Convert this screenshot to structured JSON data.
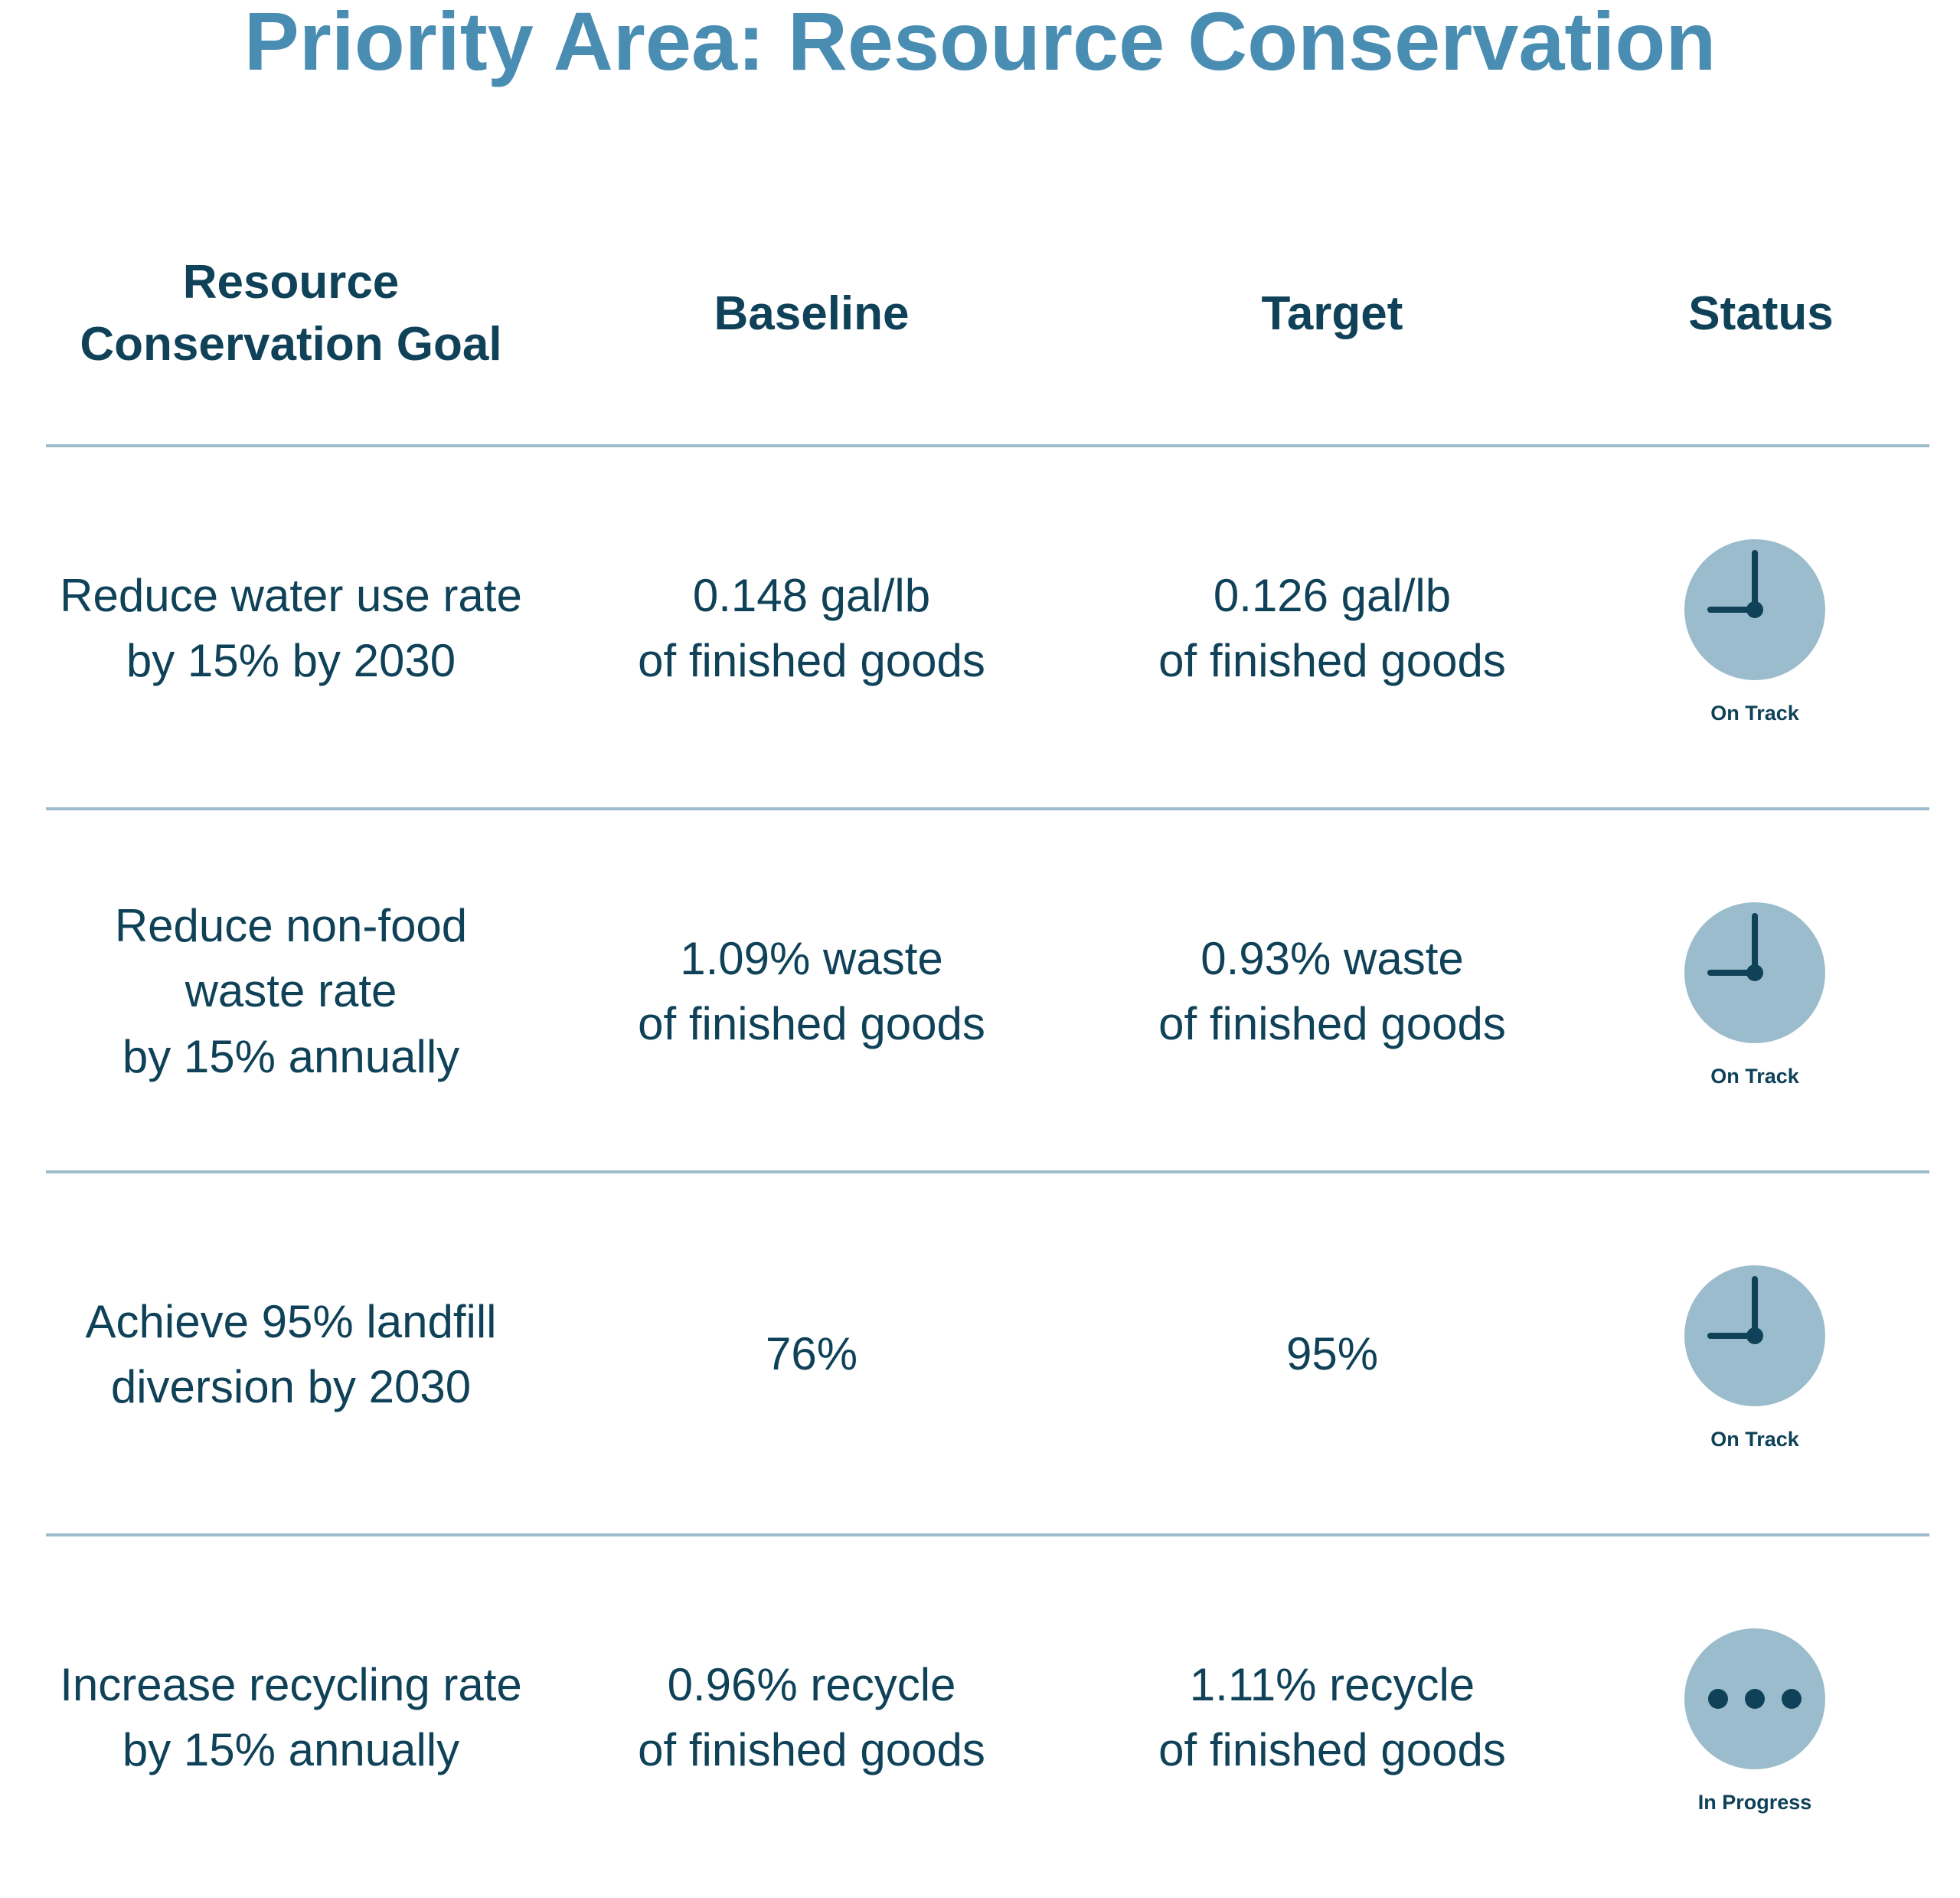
{
  "title": "Priority Area: Resource Conservation",
  "header": {
    "goal": [
      "Resource",
      "Conservation Goal"
    ],
    "baseline": "Baseline",
    "target": "Target",
    "status": "Status"
  },
  "rows": [
    {
      "goal": [
        "Reduce water use rate",
        "by 15% by 2030"
      ],
      "baseline": [
        "0.148 gal/lb",
        "of finished goods"
      ],
      "target": [
        "0.126 gal/lb",
        "of finished goods"
      ],
      "status": "On Track",
      "status_icon": "clock-icon"
    },
    {
      "goal": [
        "Reduce non-food",
        "waste rate",
        "by 15% annually"
      ],
      "baseline": [
        "1.09% waste",
        "of finished goods"
      ],
      "target": [
        "0.93% waste",
        "of finished goods"
      ],
      "status": "On Track",
      "status_icon": "clock-icon"
    },
    {
      "goal": [
        "Achieve 95% landfill",
        "diversion by 2030"
      ],
      "baseline": [
        "76%"
      ],
      "target": [
        "95%"
      ],
      "status": "On Track",
      "status_icon": "clock-icon"
    },
    {
      "goal": [
        "Increase recycling rate",
        "by 15% annually"
      ],
      "baseline": [
        "0.96% recycle",
        "of finished goods"
      ],
      "target": [
        "1.11% recycle",
        "of finished goods"
      ],
      "status": "In Progress",
      "status_icon": "ellipsis-icon"
    }
  ],
  "colors": {
    "title": "#4a8db2",
    "text": "#0f4258",
    "rule": "#9dbccd",
    "status_circle": "#9bbccc"
  }
}
